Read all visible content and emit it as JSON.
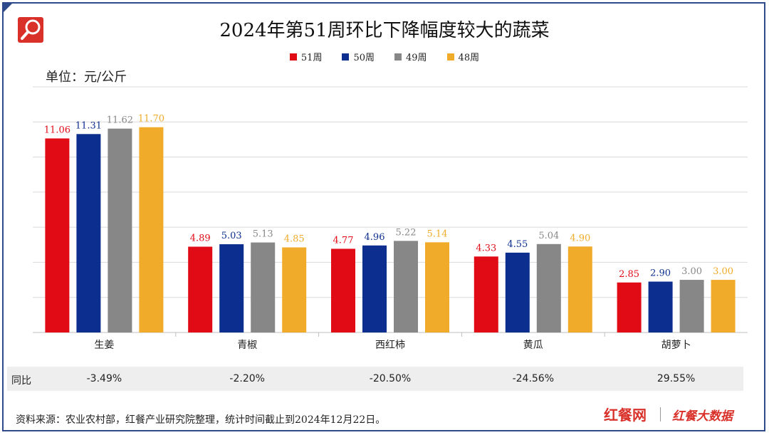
{
  "title": "2024年第51周环比下降幅度较大的蔬菜",
  "unit_label": "单位：元/公斤",
  "legend": [
    {
      "name": "51周",
      "color": "#e10b16"
    },
    {
      "name": "50周",
      "color": "#0c2f8f"
    },
    {
      "name": "49周",
      "color": "#878787"
    },
    {
      "name": "48周",
      "color": "#f1ab2a"
    }
  ],
  "chart_data": {
    "type": "bar",
    "title": "2024年第51周环比下降幅度较大的蔬菜",
    "ylabel": "单位：元/公斤",
    "categories": [
      "生姜",
      "青椒",
      "西红柿",
      "黄瓜",
      "胡萝卜"
    ],
    "series": [
      {
        "name": "51周",
        "color": "#e10b16",
        "values": [
          11.06,
          4.89,
          4.77,
          4.33,
          2.85
        ]
      },
      {
        "name": "50周",
        "color": "#0c2f8f",
        "values": [
          11.31,
          5.03,
          4.96,
          4.55,
          2.9
        ]
      },
      {
        "name": "49周",
        "color": "#878787",
        "values": [
          11.62,
          5.13,
          5.22,
          5.04,
          3.0
        ]
      },
      {
        "name": "48周",
        "color": "#f1ab2a",
        "values": [
          11.7,
          4.85,
          5.14,
          4.9,
          3.0
        ]
      }
    ],
    "ylim": [
      0,
      14
    ],
    "grid": true,
    "legend_position": "top-center"
  },
  "yoy": {
    "label": "同比",
    "values": [
      "-3.49%",
      "-2.20%",
      "-20.50%",
      "-24.56%",
      "29.55%"
    ]
  },
  "source": "资料来源：农业农村部，红餐产业研究院整理，统计时间截止到2024年12月22日。",
  "brand": {
    "name1": "红餐网",
    "name2": "红餐大数据"
  },
  "icons": {
    "logo": "magnifier-icon"
  }
}
